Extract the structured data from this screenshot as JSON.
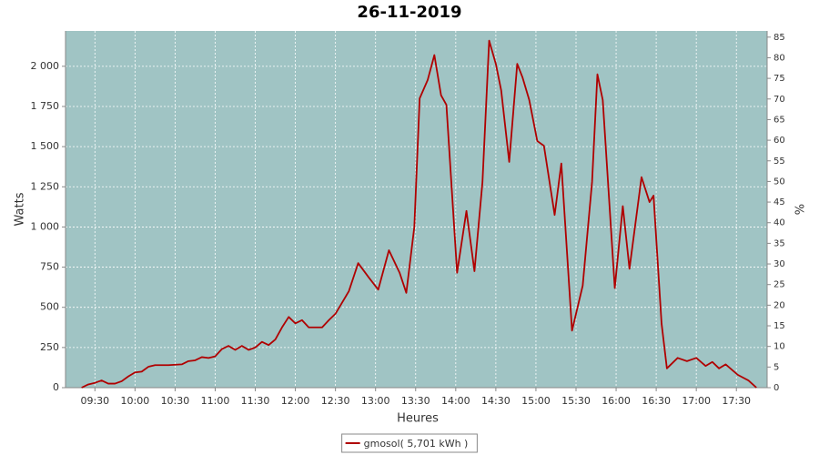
{
  "chart_data": {
    "type": "line",
    "title": "26-11-2019",
    "x_label": "Heures",
    "y_label": "Watts",
    "y2_label": "%",
    "x": [
      "09:20",
      "09:25",
      "09:30",
      "09:35",
      "09:40",
      "09:45",
      "09:50",
      "09:55",
      "10:00",
      "10:05",
      "10:10",
      "10:15",
      "10:25",
      "10:35",
      "10:40",
      "10:45",
      "10:50",
      "10:55",
      "11:00",
      "11:05",
      "11:10",
      "11:15",
      "11:20",
      "11:25",
      "11:30",
      "11:35",
      "11:40",
      "11:45",
      "11:50",
      "11:55",
      "12:00",
      "12:05",
      "12:10",
      "12:20",
      "12:25",
      "12:30",
      "12:35",
      "12:40",
      "12:47",
      "12:55",
      "13:02",
      "13:10",
      "13:18",
      "13:23",
      "13:29",
      "13:33",
      "13:39",
      "13:44",
      "13:49",
      "13:53",
      "14:01",
      "14:08",
      "14:14",
      "14:20",
      "14:25",
      "14:30",
      "14:34",
      "14:40",
      "14:46",
      "14:50",
      "14:55",
      "15:01",
      "15:06",
      "15:14",
      "15:19",
      "15:27",
      "15:35",
      "15:42",
      "15:46",
      "15:50",
      "15:59",
      "16:05",
      "16:10",
      "16:19",
      "16:25",
      "16:28",
      "16:34",
      "16:38",
      "16:46",
      "16:53",
      "17:00",
      "17:07",
      "17:12",
      "17:17",
      "17:22",
      "17:31",
      "17:39",
      "17:45"
    ],
    "series": [
      {
        "name": "gmosol( 5,701 kWh )",
        "color": "#b00000",
        "values": [
          0,
          20,
          30,
          45,
          25,
          25,
          40,
          70,
          95,
          100,
          130,
          140,
          140,
          145,
          165,
          170,
          190,
          185,
          195,
          240,
          260,
          235,
          260,
          235,
          250,
          285,
          265,
          300,
          375,
          440,
          400,
          420,
          375,
          375,
          420,
          460,
          530,
          600,
          775,
          685,
          610,
          855,
          715,
          590,
          1000,
          1800,
          1915,
          2070,
          1820,
          1760,
          715,
          1100,
          725,
          1280,
          2160,
          2015,
          1850,
          1405,
          2015,
          1930,
          1790,
          1535,
          1505,
          1075,
          1395,
          355,
          635,
          1280,
          1950,
          1790,
          620,
          1130,
          740,
          1310,
          1155,
          1195,
          400,
          120,
          185,
          165,
          185,
          135,
          160,
          120,
          145,
          80,
          45,
          0
        ]
      }
    ],
    "xlim": [
      "09:08",
      "17:53"
    ],
    "xticks": [
      "09:30",
      "10:00",
      "10:30",
      "11:00",
      "11:30",
      "12:00",
      "12:30",
      "13:00",
      "13:30",
      "14:00",
      "14:30",
      "15:00",
      "15:30",
      "16:00",
      "16:30",
      "17:00",
      "17:30"
    ],
    "ylim": [
      0,
      2220
    ],
    "yticks": [
      0,
      250,
      500,
      750,
      {
        "value": 1000,
        "label": "1 000"
      },
      {
        "value": 1250,
        "label": "1 250"
      },
      {
        "value": 1500,
        "label": "1 500"
      },
      {
        "value": 1750,
        "label": "1 750"
      },
      {
        "value": 2000,
        "label": "2 000"
      }
    ],
    "y2lim": [
      0,
      86.5
    ],
    "y2ticks": [
      0,
      5,
      10,
      15,
      20,
      25,
      30,
      35,
      40,
      45,
      50,
      55,
      60,
      65,
      70,
      75,
      80,
      85
    ],
    "grid": true,
    "plot_background": "#a0c4c4",
    "legend": "bottom"
  }
}
